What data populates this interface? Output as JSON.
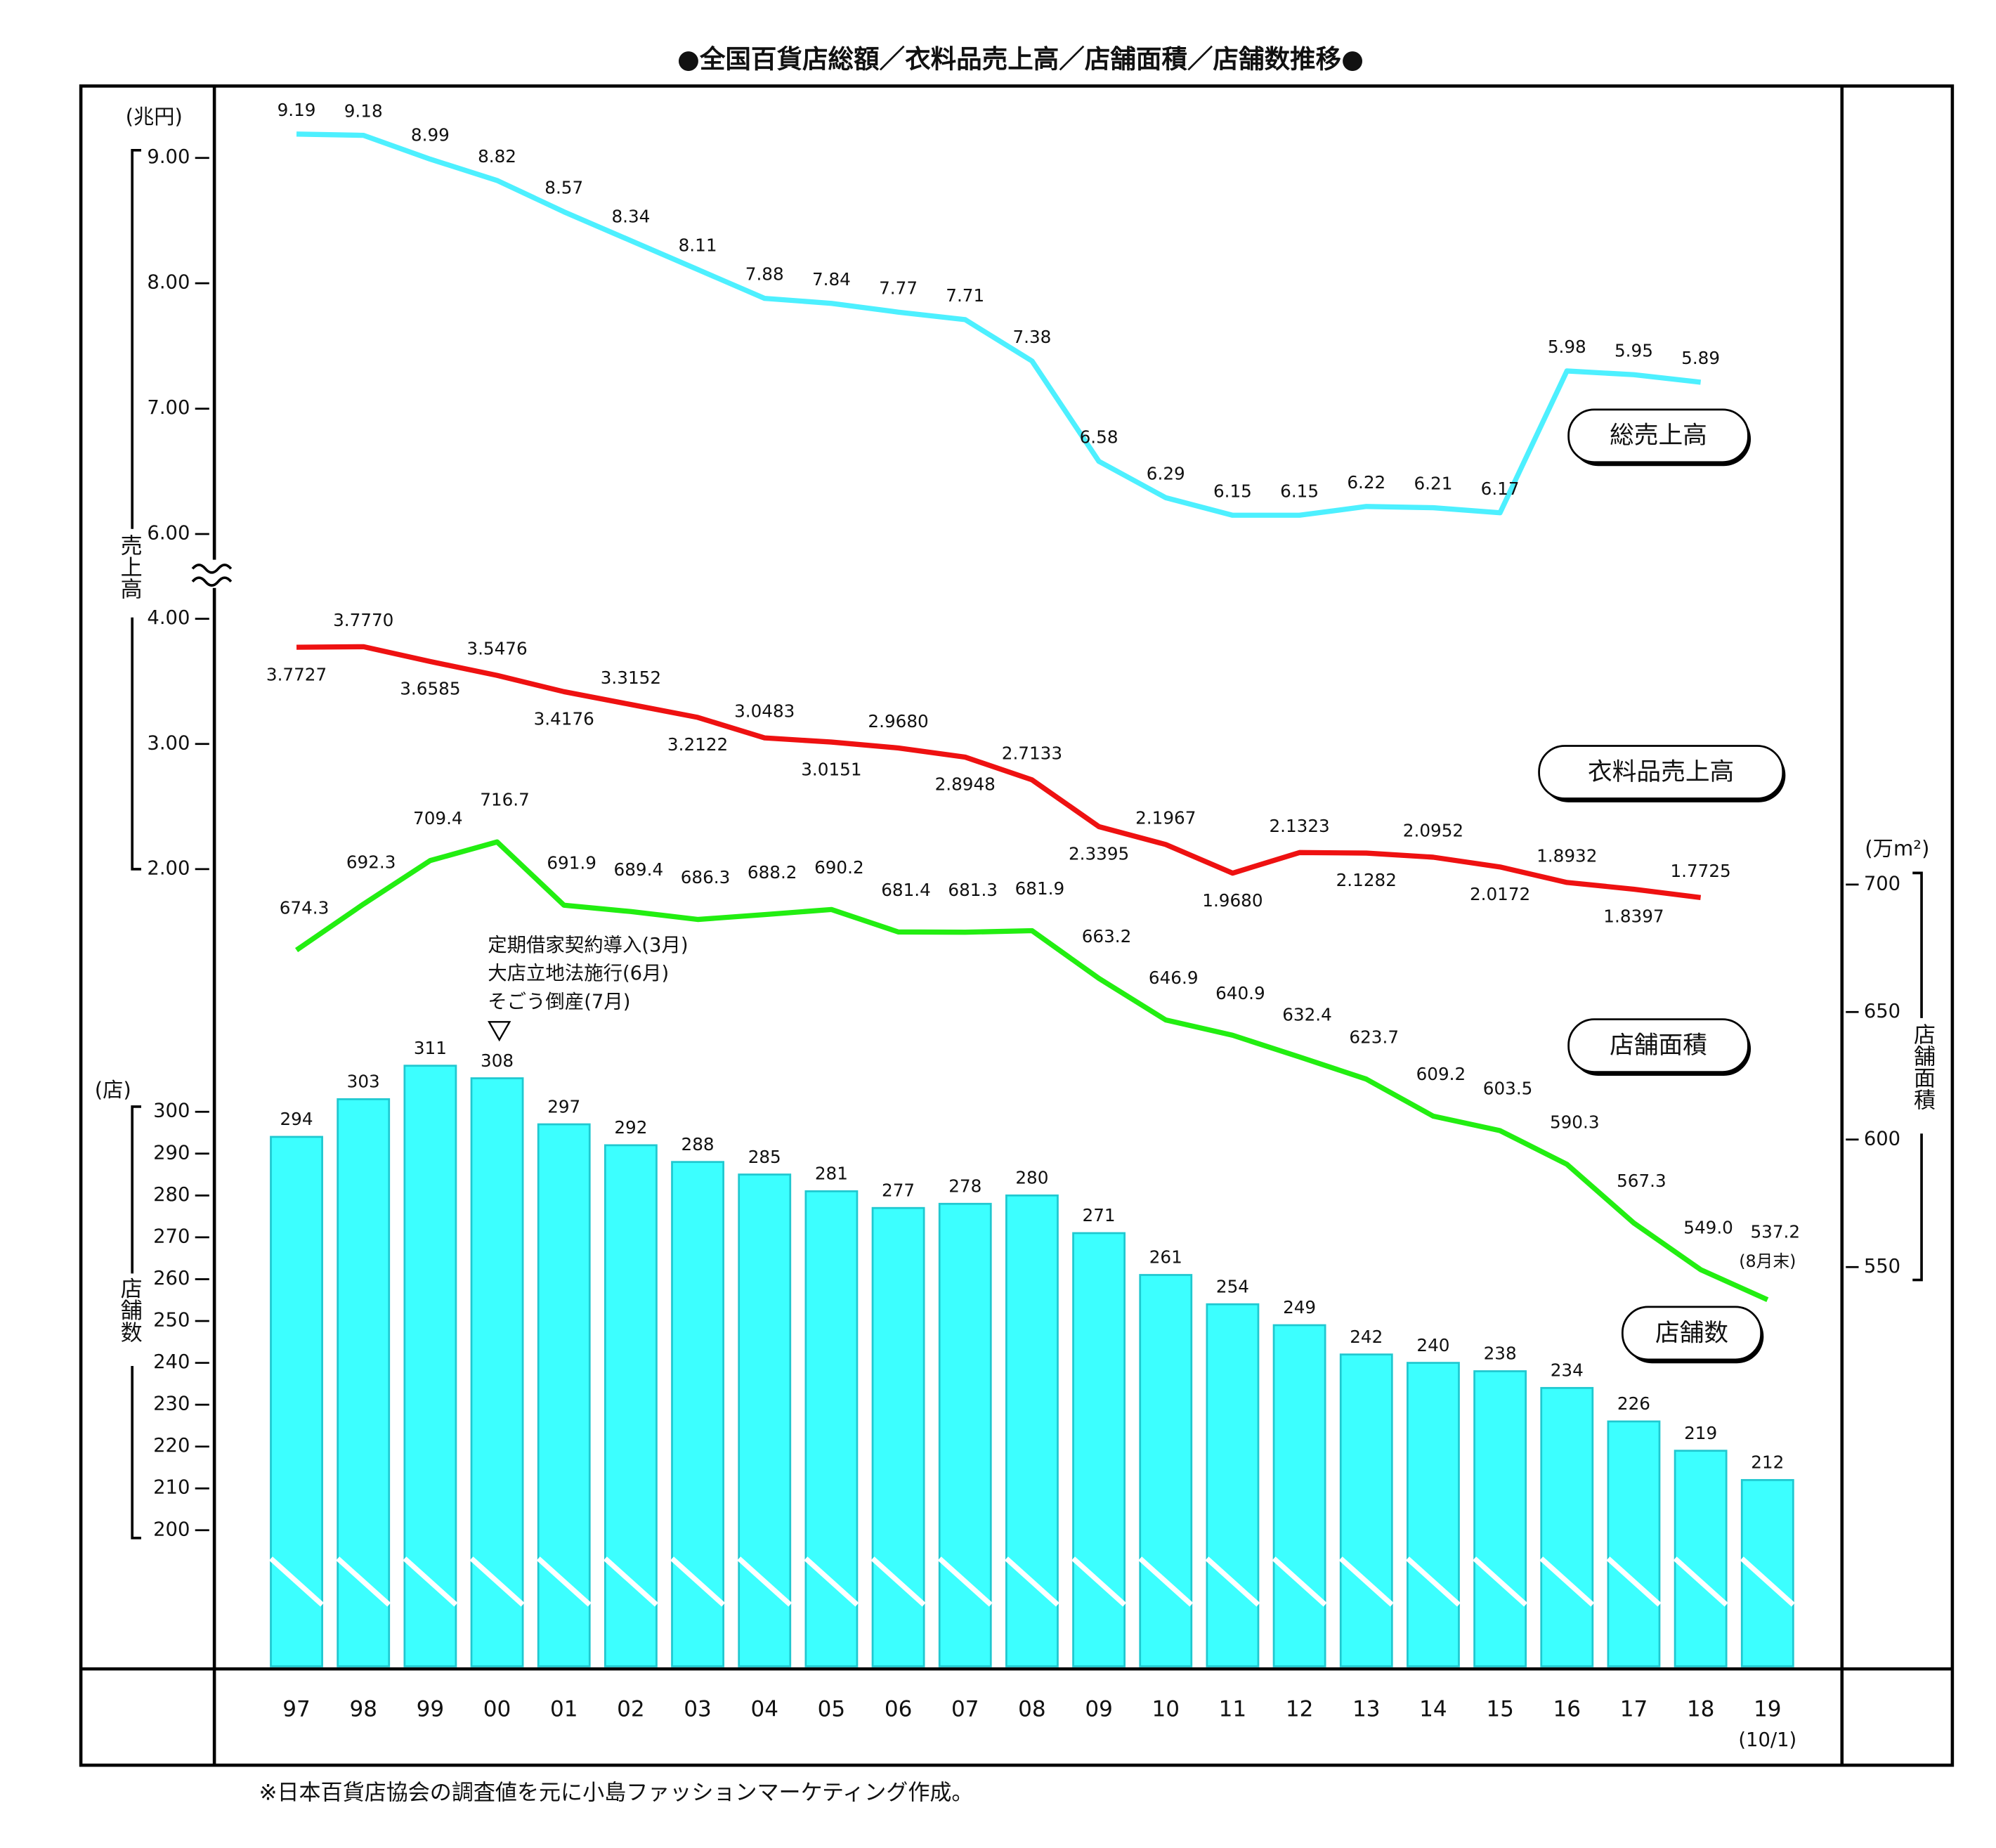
{
  "chart_data": {
    "type": "combo",
    "title": "●全国百貨店総額／衣料品売上高／店舗面積／店舗数推移●",
    "footnote": "※日本百貨店協会の調査値を元に小島ファッションマーケティング作成。",
    "categories": [
      "97",
      "98",
      "99",
      "00",
      "01",
      "02",
      "03",
      "04",
      "05",
      "06",
      "07",
      "08",
      "09",
      "10",
      "11",
      "12",
      "13",
      "14",
      "15",
      "16",
      "17",
      "18",
      "19"
    ],
    "category_note": "(10/1)",
    "annotations": [
      "定期借家契約導入(3月)",
      "大店立地法施行(6月)",
      "そごう倒産(7月)"
    ],
    "yunit": "(兆円)",
    "ylabel": "売上高",
    "ylim": [
      6,
      9
    ],
    "yticks": [
      {
        "value": 9,
        "label": "9.00"
      },
      {
        "value": 8,
        "label": "8.00"
      },
      {
        "value": 7,
        "label": "7.00"
      },
      {
        "value": 6,
        "label": "6.00"
      }
    ],
    "ylim_lower": [
      2,
      4
    ],
    "yticks_lower": [
      {
        "value": 4,
        "label": "4.00"
      },
      {
        "value": 3,
        "label": "3.00"
      },
      {
        "value": 2,
        "label": "2.00"
      }
    ],
    "y2unit": "(万m²)",
    "y2label": "店舗面積",
    "y2lim": [
      550,
      700
    ],
    "y2ticks": [
      700,
      650,
      600,
      550
    ],
    "y3unit": "(店)",
    "y3label": "店舗数",
    "y3lim": [
      200,
      300
    ],
    "y3ticks": [
      300,
      290,
      280,
      270,
      260,
      250,
      240,
      230,
      220,
      210,
      200
    ],
    "series": [
      {
        "name": "総売上高",
        "type": "line",
        "axis": "y",
        "color": "#4df0ff",
        "values": [
          9.19,
          9.18,
          8.99,
          8.82,
          8.57,
          8.34,
          8.11,
          7.88,
          7.84,
          7.77,
          7.71,
          7.38,
          6.58,
          6.29,
          6.15,
          6.15,
          6.22,
          6.21,
          6.17,
          5.98,
          5.95,
          5.89,
          null
        ]
      },
      {
        "name": "衣料品売上高",
        "type": "line",
        "axis": "y",
        "color": "#ee1111",
        "values": [
          3.7727,
          3.777,
          3.6585,
          3.5476,
          3.4176,
          3.3152,
          3.2122,
          3.0483,
          3.0151,
          2.968,
          2.8948,
          2.7133,
          2.3395,
          2.1967,
          1.968,
          2.1323,
          2.1282,
          2.0952,
          2.0172,
          1.8932,
          1.8397,
          1.7725,
          null
        ],
        "value_labels": [
          "3.7727",
          "3.7770",
          "3.6585",
          "3.5476",
          "3.4176",
          "3.3152",
          "3.2122",
          "3.0483",
          "3.0151",
          "2.9680",
          "2.8948",
          "2.7133",
          "2.3395",
          "2.1967",
          "1.9680",
          "2.1323",
          "2.1282",
          "2.0952",
          "2.0172",
          "1.8932",
          "1.8397",
          "1.7725",
          null
        ]
      },
      {
        "name": "店舗面積",
        "type": "line",
        "axis": "y2",
        "color": "#22ee11",
        "values": [
          674.3,
          692.3,
          709.4,
          716.7,
          691.9,
          689.4,
          686.3,
          688.2,
          690.2,
          681.4,
          681.3,
          681.9,
          663.2,
          646.9,
          640.9,
          632.4,
          623.7,
          609.2,
          603.5,
          590.3,
          567.3,
          549.0,
          537.2
        ],
        "value_labels": [
          "674.3",
          "692.3",
          "709.4",
          "716.7",
          "691.9",
          "689.4",
          "686.3",
          "688.2",
          "690.2",
          "681.4",
          "681.3",
          "681.9",
          "663.2",
          "646.9",
          "640.9",
          "632.4",
          "623.7",
          "609.2",
          "603.5",
          "590.3",
          "567.3",
          "549.0",
          "537.2"
        ],
        "last_note": "(8月末)"
      },
      {
        "name": "店舗数",
        "type": "bar",
        "axis": "y3",
        "color": "#3cffff",
        "values": [
          294,
          303,
          311,
          308,
          297,
          292,
          288,
          285,
          281,
          277,
          278,
          280,
          271,
          261,
          254,
          249,
          242,
          240,
          238,
          234,
          226,
          219,
          212
        ]
      }
    ]
  }
}
